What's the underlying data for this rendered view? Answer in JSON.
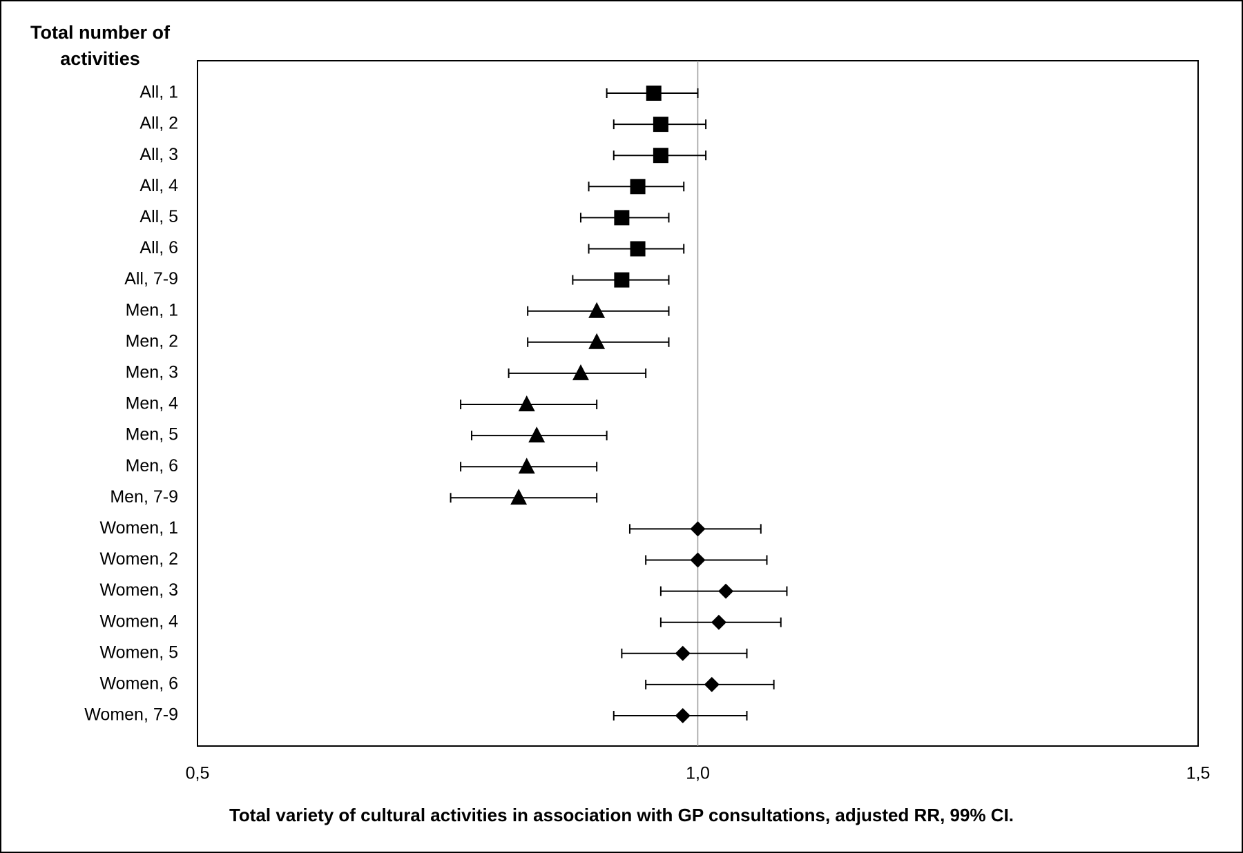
{
  "chart_data": {
    "type": "forest",
    "y_label": "Total number of activities",
    "x_label": "Total variety of cultural activities in association with GP consultations, adjusted RR, 99% CI.",
    "categories": [
      "All, 1",
      "All, 2",
      "All, 3",
      "All, 4",
      "All, 5",
      "All, 6",
      "All, 7-9",
      "Men, 1",
      "Men, 2",
      "Men, 3",
      "Men, 4",
      "Men, 5",
      "Men, 6",
      "Men, 7-9",
      "Women, 1",
      "Women, 2",
      "Women, 3",
      "Women, 4",
      "Women, 5",
      "Women, 6",
      "Women, 7-9"
    ],
    "values": [
      0.956,
      0.963,
      0.963,
      0.94,
      0.924,
      0.94,
      0.924,
      0.899,
      0.899,
      0.883,
      0.829,
      0.839,
      0.829,
      0.821,
      1.0,
      1.0,
      1.028,
      1.021,
      0.985,
      1.014,
      0.985
    ],
    "lower": [
      0.909,
      0.916,
      0.916,
      0.891,
      0.883,
      0.891,
      0.875,
      0.83,
      0.83,
      0.811,
      0.763,
      0.774,
      0.763,
      0.753,
      0.932,
      0.948,
      0.963,
      0.963,
      0.924,
      0.948,
      0.916
    ],
    "upper": [
      1.0,
      1.008,
      1.008,
      0.986,
      0.971,
      0.986,
      0.971,
      0.971,
      0.971,
      0.948,
      0.899,
      0.909,
      0.899,
      0.899,
      1.063,
      1.069,
      1.089,
      1.083,
      1.049,
      1.076,
      1.049
    ],
    "markers": [
      "square",
      "square",
      "square",
      "square",
      "square",
      "square",
      "square",
      "triangle",
      "triangle",
      "triangle",
      "triangle",
      "triangle",
      "triangle",
      "triangle",
      "diamond",
      "diamond",
      "diamond",
      "diamond",
      "diamond",
      "diamond",
      "diamond"
    ],
    "color": "#000000",
    "reference_line": 1.0,
    "xlim": [
      0.5,
      1.5
    ],
    "xticks": [
      {
        "value": 0.5,
        "label": "0,5"
      },
      {
        "value": 1.0,
        "label": "1,0"
      },
      {
        "value": 1.5,
        "label": "1,5"
      }
    ]
  }
}
